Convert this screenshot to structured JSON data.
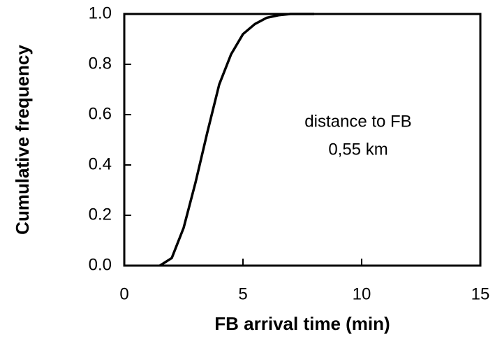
{
  "chart_data": {
    "type": "line",
    "xlabel": "FB arrival time (min)",
    "ylabel": "Cumulative frequency",
    "annotations": [
      "distance to FB",
      "0,55 km"
    ],
    "x": [
      1.5,
      2,
      2.5,
      3,
      3.5,
      4,
      4.5,
      5,
      5.5,
      6,
      6.5,
      7,
      8
    ],
    "series": [
      {
        "name": "cumulative",
        "color": "#000000",
        "values": [
          0,
          0.03,
          0.15,
          0.33,
          0.53,
          0.72,
          0.84,
          0.92,
          0.96,
          0.985,
          0.995,
          1.0,
          1.0
        ]
      }
    ],
    "xlim": [
      0,
      15
    ],
    "xticks": [
      0,
      5,
      10,
      15
    ],
    "ylim": [
      0,
      1
    ],
    "yticks": [
      {
        "value": 0,
        "label": "0.0"
      },
      0.2,
      0.4,
      0.6,
      0.8,
      {
        "value": 1,
        "label": "1.0"
      }
    ],
    "grid": false
  }
}
